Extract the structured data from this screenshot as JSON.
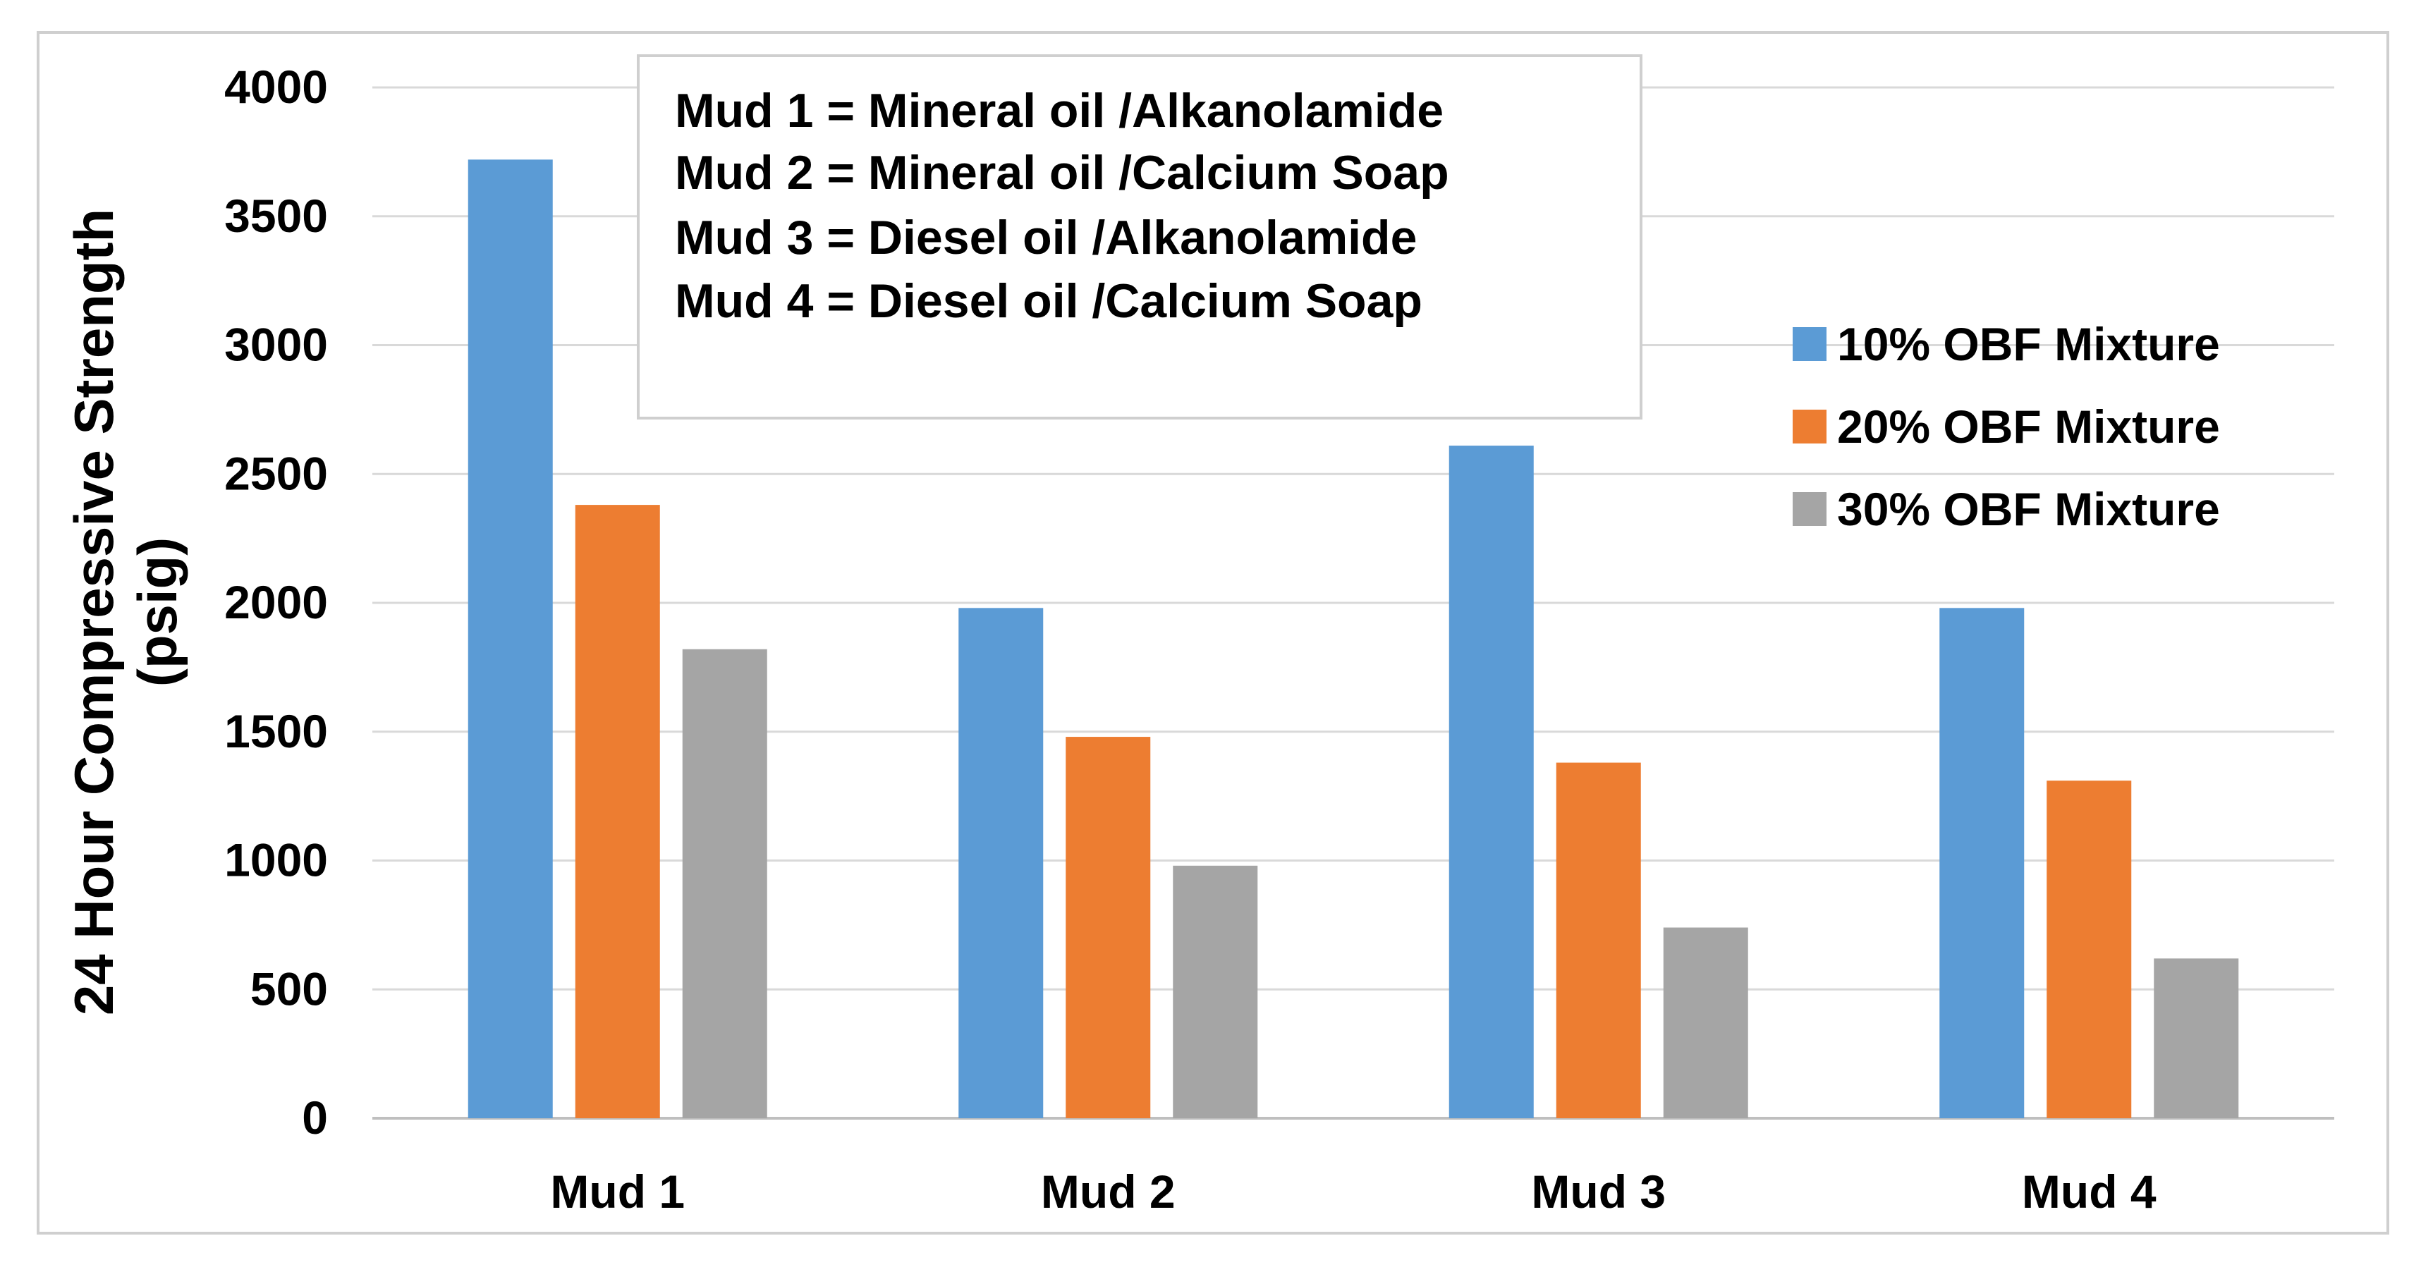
{
  "chart_data": {
    "type": "bar",
    "title": "",
    "xlabel": "",
    "ylabel_lines": [
      "24 Hour Compressive Strength",
      "(psig)"
    ],
    "categories": [
      "Mud 1",
      "Mud 2",
      "Mud 3",
      "Mud 4"
    ],
    "series": [
      {
        "name": "10% OBF Mixture",
        "color": "#5b9bd5",
        "values": [
          3720,
          1980,
          2610,
          1980
        ]
      },
      {
        "name": "20% OBF Mixture",
        "color": "#ed7d31",
        "values": [
          2380,
          1480,
          1380,
          1310
        ]
      },
      {
        "name": "30% OBF Mixture",
        "color": "#a5a5a5",
        "values": [
          1820,
          980,
          740,
          620
        ]
      }
    ],
    "ylim": [
      0,
      4000
    ],
    "yticks": [
      "0",
      "500",
      "1000",
      "1500",
      "2000",
      "2500",
      "3000",
      "3500",
      "4000"
    ],
    "grid": true,
    "legend_position": "right",
    "annotation_lines": [
      "Mud 1 = Mineral oil /Alkanolamide",
      "Mud 2 = Mineral oil /Calcium Soap",
      "Mud 3 = Diesel oil /Alkanolamide",
      "Mud 4 = Diesel oil /Calcium Soap"
    ]
  }
}
